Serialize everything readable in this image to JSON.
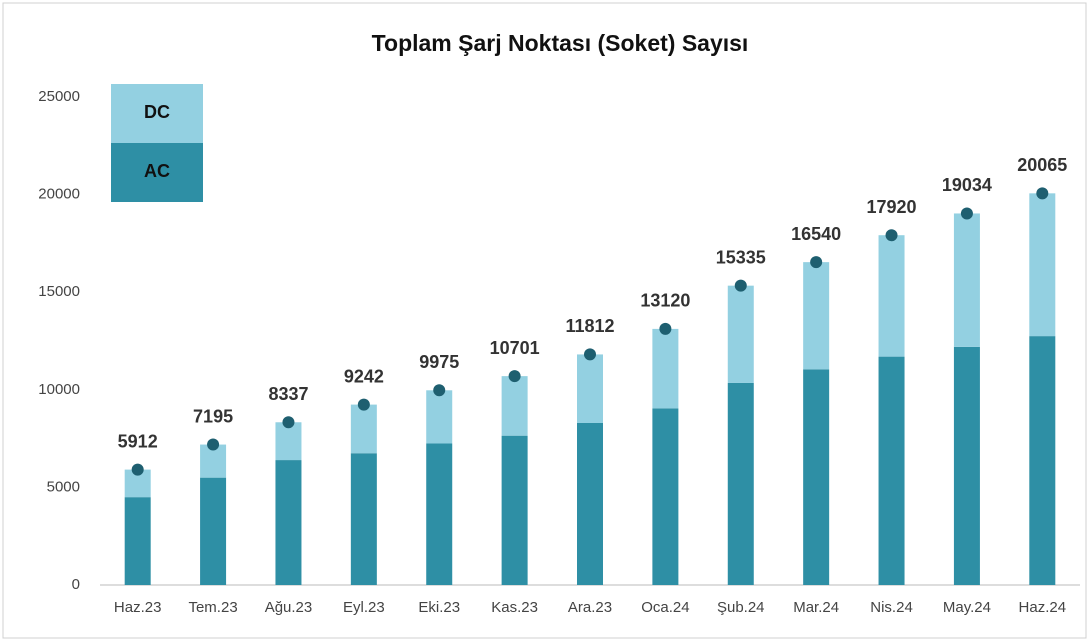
{
  "chart_data": {
    "type": "bar",
    "stacked": true,
    "title": "Toplam Şarj Noktası (Soket) Sayısı",
    "categories": [
      "Haz.23",
      "Tem.23",
      "Ağu.23",
      "Eyl.23",
      "Eki.23",
      "Kas.23",
      "Ara.23",
      "Oca.24",
      "Şub.24",
      "Mar.24",
      "Nis.24",
      "May.24",
      "Haz.24"
    ],
    "series": [
      {
        "name": "AC",
        "color": "#2e8fa5",
        "values": [
          4500,
          5500,
          6400,
          6750,
          7250,
          7650,
          8300,
          9050,
          10350,
          11050,
          11700,
          12200,
          12750
        ]
      },
      {
        "name": "DC",
        "color": "#93d0e1",
        "values": [
          1412,
          1695,
          1937,
          2492,
          2725,
          3051,
          3512,
          4070,
          4985,
          5490,
          6220,
          6834,
          7315
        ]
      }
    ],
    "totals": [
      5912,
      7195,
      8337,
      9242,
      9975,
      10701,
      11812,
      13120,
      15335,
      16540,
      17920,
      19034,
      20065
    ],
    "total_color": "#1e5f70",
    "ylim": [
      0,
      25000
    ],
    "yticks": [
      0,
      5000,
      10000,
      15000,
      20000,
      25000
    ],
    "grid": false,
    "legend": "top-left"
  }
}
